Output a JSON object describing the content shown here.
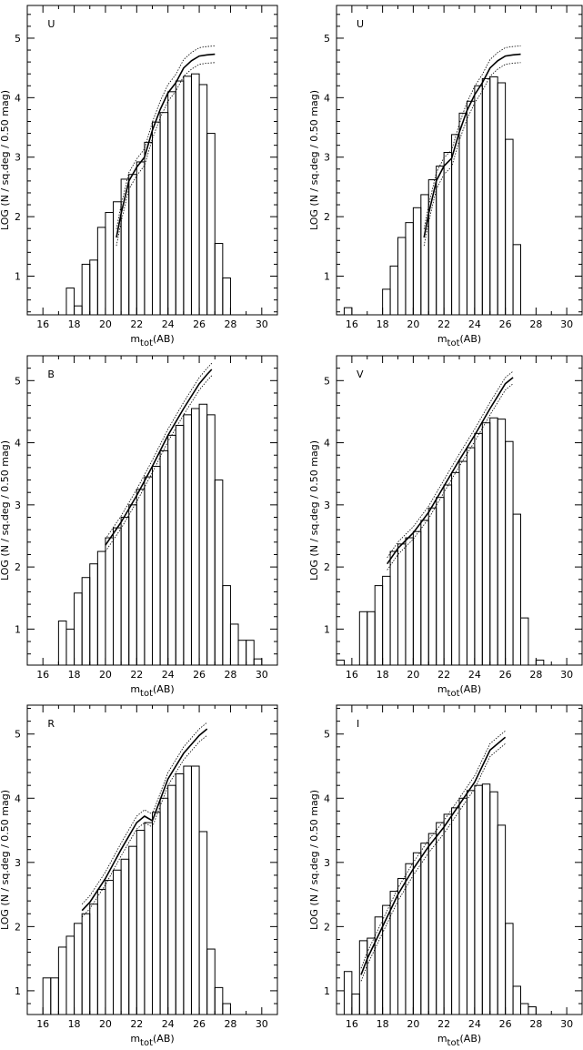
{
  "figure": {
    "background": "#ffffff",
    "ink": "#000000"
  },
  "chart_data": [
    {
      "type": "line",
      "band": "U",
      "xlabel": "m_tot(AB)",
      "ylabel": "LOG (N / sq.deg / 0.50 mag)",
      "xlim": [
        15,
        31
      ],
      "ylim": [
        0.35,
        5.55
      ],
      "xticks": [
        16,
        18,
        20,
        22,
        24,
        26,
        28,
        30
      ],
      "yticks": [
        1,
        2,
        3,
        4,
        5
      ],
      "histogram": {
        "edges": [
          15.0,
          15.5,
          16.0,
          16.5,
          17.0,
          17.5,
          18.0,
          18.5,
          19.0,
          19.5,
          20.0,
          20.5,
          21.0,
          21.5,
          22.0,
          22.5,
          23.0,
          23.5,
          24.0,
          24.5,
          25.0,
          25.5,
          26.0,
          26.5,
          27.0,
          27.5,
          28.0
        ],
        "values": [
          null,
          null,
          null,
          null,
          null,
          0.8,
          0.5,
          1.2,
          1.27,
          1.82,
          2.07,
          2.25,
          2.63,
          2.71,
          2.92,
          3.25,
          3.59,
          3.75,
          4.1,
          4.28,
          4.36,
          4.4,
          4.22,
          3.4,
          1.55,
          0.97
        ]
      },
      "model": {
        "x": [
          20.7,
          21.0,
          21.5,
          22.0,
          22.5,
          23.0,
          23.5,
          24.0,
          24.5,
          25.0,
          25.5,
          26.0,
          26.5,
          27.0
        ],
        "y": [
          1.65,
          2.05,
          2.6,
          2.83,
          3.0,
          3.45,
          3.8,
          4.08,
          4.25,
          4.5,
          4.62,
          4.7,
          4.72,
          4.73
        ],
        "envelope": 0.14
      }
    },
    {
      "type": "line",
      "band": "U",
      "xlabel": "m_tot(AB)",
      "ylabel": "LOG (N / sq.deg / 0.50 mag)",
      "xlim": [
        15,
        31
      ],
      "ylim": [
        0.35,
        5.55
      ],
      "xticks": [
        16,
        18,
        20,
        22,
        24,
        26,
        28,
        30
      ],
      "yticks": [
        1,
        2,
        3,
        4,
        5
      ],
      "histogram": {
        "edges": [
          15.0,
          15.5,
          16.0,
          16.5,
          17.0,
          17.5,
          18.0,
          18.5,
          19.0,
          19.5,
          20.0,
          20.5,
          21.0,
          21.5,
          22.0,
          22.5,
          23.0,
          23.5,
          24.0,
          24.5,
          25.0,
          25.5,
          26.0,
          26.5,
          27.0
        ],
        "values": [
          null,
          0.47,
          null,
          null,
          null,
          null,
          0.78,
          1.17,
          1.65,
          1.9,
          2.15,
          2.37,
          2.62,
          2.85,
          3.08,
          3.38,
          3.74,
          3.94,
          4.2,
          4.32,
          4.35,
          4.25,
          3.3,
          1.53
        ]
      },
      "model": {
        "x": [
          20.7,
          21.0,
          21.5,
          22.0,
          22.5,
          23.0,
          23.5,
          24.0,
          24.5,
          25.0,
          25.5,
          26.0,
          26.5,
          27.0
        ],
        "y": [
          1.65,
          2.05,
          2.6,
          2.85,
          2.98,
          3.42,
          3.78,
          4.05,
          4.25,
          4.5,
          4.62,
          4.7,
          4.72,
          4.73
        ],
        "envelope": 0.14
      }
    },
    {
      "type": "line",
      "band": "B",
      "xlabel": "m_tot(AB)",
      "ylabel": "LOG (N / sq.deg / 0.50 mag)",
      "xlim": [
        15,
        31
      ],
      "ylim": [
        0.42,
        5.4
      ],
      "xticks": [
        16,
        18,
        20,
        22,
        24,
        26,
        28,
        30
      ],
      "yticks": [
        1,
        2,
        3,
        4,
        5
      ],
      "histogram": {
        "edges": [
          17.0,
          17.5,
          18.0,
          18.5,
          19.0,
          19.5,
          20.0,
          20.5,
          21.0,
          21.5,
          22.0,
          22.5,
          23.0,
          23.5,
          24.0,
          24.5,
          25.0,
          25.5,
          26.0,
          26.5,
          27.0,
          27.5,
          28.0,
          28.5,
          29.0,
          29.5,
          30.0
        ],
        "values": [
          1.13,
          1.0,
          1.58,
          1.83,
          2.05,
          2.25,
          2.47,
          2.63,
          2.8,
          3.0,
          3.25,
          3.45,
          3.62,
          3.87,
          4.12,
          4.28,
          4.45,
          4.55,
          4.62,
          4.45,
          3.4,
          1.7,
          1.08,
          0.82,
          0.82,
          0.52
        ]
      },
      "model": {
        "x": [
          20.0,
          21.0,
          22.0,
          23.0,
          24.0,
          25.0,
          26.0,
          26.5,
          26.8
        ],
        "y": [
          2.35,
          2.72,
          3.15,
          3.62,
          4.12,
          4.55,
          4.95,
          5.1,
          5.18
        ],
        "envelope": 0.1
      }
    },
    {
      "type": "line",
      "band": "V",
      "xlabel": "m_tot(AB)",
      "ylabel": "LOG (N / sq.deg / 0.50 mag)",
      "xlim": [
        15,
        31
      ],
      "ylim": [
        0.42,
        5.4
      ],
      "xticks": [
        16,
        18,
        20,
        22,
        24,
        26,
        28,
        30
      ],
      "yticks": [
        1,
        2,
        3,
        4,
        5
      ],
      "histogram": {
        "edges": [
          15.0,
          15.5,
          16.0,
          16.5,
          17.0,
          17.5,
          18.0,
          18.5,
          19.0,
          19.5,
          20.0,
          20.5,
          21.0,
          21.5,
          22.0,
          22.5,
          23.0,
          23.5,
          24.0,
          24.5,
          25.0,
          25.5,
          26.0,
          26.5,
          27.0,
          27.5,
          28.0,
          28.5
        ],
        "values": [
          0.5,
          null,
          null,
          1.28,
          1.28,
          1.7,
          1.85,
          2.25,
          2.37,
          2.47,
          2.57,
          2.75,
          2.95,
          3.12,
          3.32,
          3.52,
          3.7,
          3.92,
          4.15,
          4.32,
          4.4,
          4.38,
          4.02,
          2.85,
          1.18,
          null,
          0.5
        ]
      },
      "model": {
        "x": [
          18.3,
          19.0,
          20.0,
          21.0,
          22.0,
          23.0,
          24.0,
          25.0,
          25.5,
          26.0,
          26.5
        ],
        "y": [
          2.05,
          2.3,
          2.55,
          2.88,
          3.3,
          3.72,
          4.12,
          4.55,
          4.75,
          4.95,
          5.05
        ],
        "envelope": 0.1
      }
    },
    {
      "type": "line",
      "band": "R",
      "xlabel": "m_tot(AB)",
      "ylabel": "LOG (N / sq.deg / 0.50 mag)",
      "xlim": [
        15,
        31
      ],
      "ylim": [
        0.63,
        5.45
      ],
      "xticks": [
        16,
        18,
        20,
        22,
        24,
        26,
        28,
        30
      ],
      "yticks": [
        1,
        2,
        3,
        4,
        5
      ],
      "histogram": {
        "edges": [
          16.0,
          16.5,
          17.0,
          17.5,
          18.0,
          18.5,
          19.0,
          19.5,
          20.0,
          20.5,
          21.0,
          21.5,
          22.0,
          22.5,
          23.0,
          23.5,
          24.0,
          24.5,
          25.0,
          25.5,
          26.0,
          26.5,
          27.0,
          27.5,
          28.0
        ],
        "values": [
          1.2,
          1.2,
          1.68,
          1.85,
          2.05,
          2.2,
          2.35,
          2.58,
          2.72,
          2.88,
          3.05,
          3.25,
          3.5,
          3.62,
          3.78,
          4.0,
          4.2,
          4.38,
          4.5,
          4.5,
          3.48,
          1.65,
          1.05,
          0.8
        ]
      },
      "model": {
        "x": [
          18.5,
          19.0,
          20.0,
          21.0,
          22.0,
          22.5,
          23.0,
          24.0,
          25.0,
          26.0,
          26.5
        ],
        "y": [
          2.25,
          2.38,
          2.75,
          3.2,
          3.62,
          3.72,
          3.65,
          4.3,
          4.7,
          4.98,
          5.08
        ],
        "envelope": 0.1
      }
    },
    {
      "type": "line",
      "band": "I",
      "xlabel": "m_tot(AB)",
      "ylabel": "LOG (N / sq.deg / 0.50 mag)",
      "xlim": [
        15,
        31
      ],
      "ylim": [
        0.63,
        5.45
      ],
      "xticks": [
        16,
        18,
        20,
        22,
        24,
        26,
        28,
        30
      ],
      "yticks": [
        1,
        2,
        3,
        4,
        5
      ],
      "histogram": {
        "edges": [
          15.5,
          16.0,
          16.5,
          17.0,
          17.5,
          18.0,
          18.5,
          19.0,
          19.5,
          20.0,
          20.5,
          21.0,
          21.5,
          22.0,
          22.5,
          23.0,
          23.5,
          24.0,
          24.5,
          25.0,
          25.5,
          26.0,
          26.5,
          27.0,
          27.5,
          28.0
        ],
        "values": [
          1.3,
          0.95,
          1.78,
          1.82,
          2.15,
          2.33,
          2.55,
          2.75,
          2.98,
          3.15,
          3.3,
          3.45,
          3.62,
          3.75,
          3.85,
          4.0,
          4.12,
          4.2,
          4.22,
          4.1,
          3.58,
          2.05,
          1.07,
          0.8,
          0.75
        ]
      },
      "model": {
        "x": [
          16.6,
          17.0,
          18.0,
          19.0,
          20.0,
          21.0,
          22.0,
          23.0,
          24.0,
          25.0,
          26.0
        ],
        "y": [
          1.25,
          1.5,
          2.0,
          2.5,
          2.9,
          3.25,
          3.55,
          3.9,
          4.25,
          4.75,
          4.95
        ],
        "envelope": 0.1
      }
    }
  ]
}
